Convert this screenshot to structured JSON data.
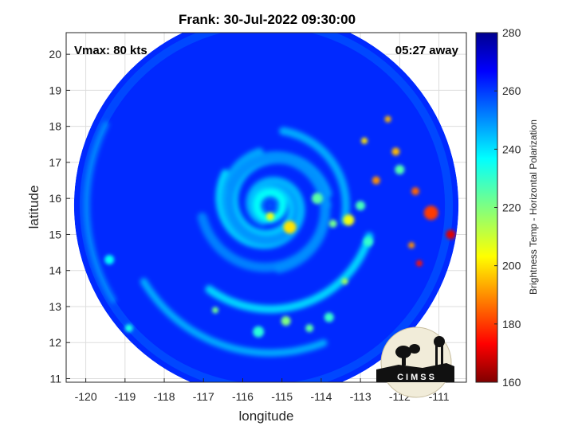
{
  "chart_data": {
    "type": "heatmap",
    "title": "Frank: 30-Jul-2022 09:30:00",
    "xlabel": "longitude",
    "ylabel": "latitude",
    "xlim": [
      -120.5,
      -110.3
    ],
    "ylim": [
      10.9,
      20.6
    ],
    "x_ticks": [
      -120,
      -119,
      -118,
      -117,
      -116,
      -115,
      -114,
      -113,
      -112,
      -111
    ],
    "x_tick_labels": [
      "-120",
      "-119",
      "-118",
      "-117",
      "-116",
      "-115",
      "-114",
      "-113",
      "-112",
      "-111"
    ],
    "y_ticks": [
      11,
      12,
      13,
      14,
      15,
      16,
      17,
      18,
      19,
      20
    ],
    "y_tick_labels": [
      "11",
      "12",
      "13",
      "14",
      "15",
      "16",
      "17",
      "18",
      "19",
      "20"
    ],
    "grid": true,
    "annotation_left": "Vmax: 80 kts",
    "annotation_right": "05:27 away",
    "colorbar": {
      "label": "Brightness Temp - Horizontal Polarization",
      "range": [
        160,
        280
      ],
      "ticks": [
        160,
        180,
        200,
        220,
        240,
        260,
        280
      ],
      "tick_labels": [
        "160",
        "180",
        "200",
        "220",
        "240",
        "260",
        "280"
      ],
      "colormap": "jet"
    },
    "storm_center": {
      "lon": -115.3,
      "lat": 15.8
    },
    "swath": {
      "center_lon": -115.4,
      "center_lat": 15.8,
      "radius_deg": 4.9
    },
    "logo_text": "CIMSS"
  }
}
